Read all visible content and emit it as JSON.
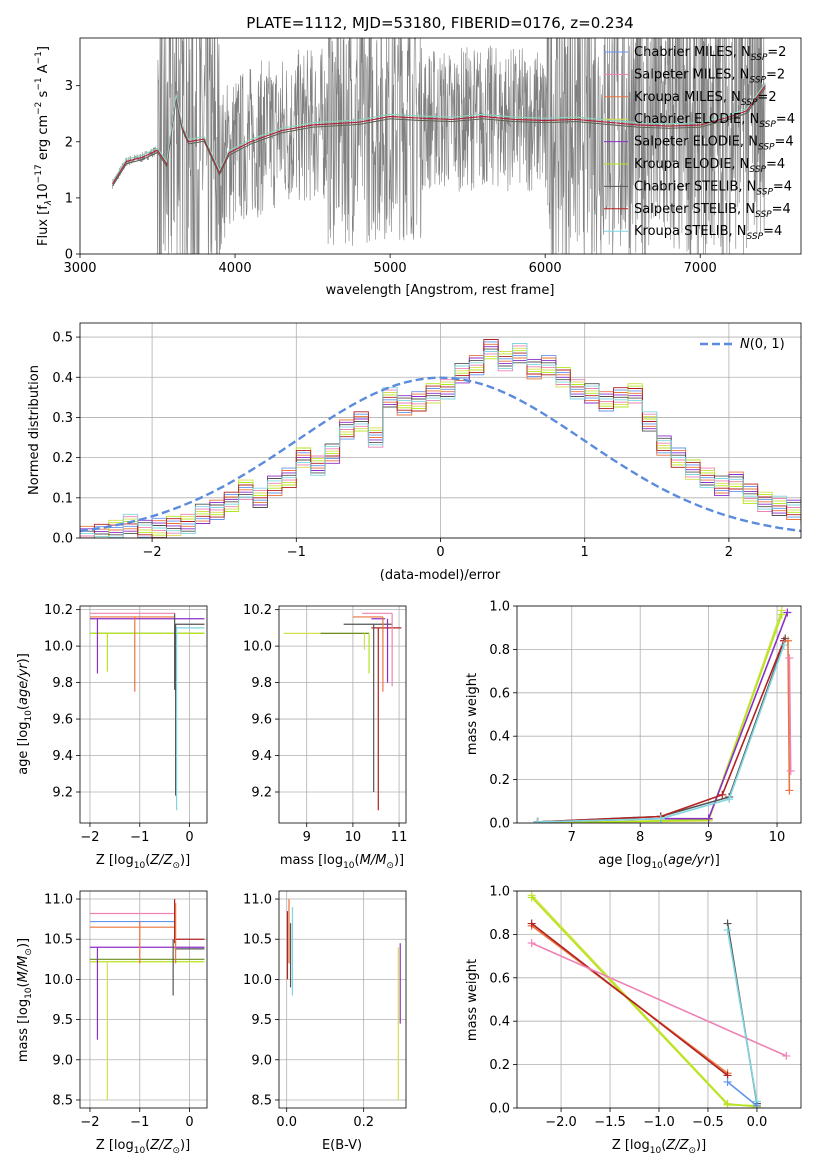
{
  "title": "PLATE=1112, MJD=53180, FIBERID=0176, z=0.234",
  "colors": {
    "chabrier_miles": "#6495ed",
    "salpeter_miles": "#ee82b4",
    "kroupa_miles": "#e9743e",
    "chabrier_elodie": "#d4df4f",
    "salpeter_elodie": "#8b2fc9",
    "kroupa_elodie": "#b5e61d",
    "chabrier_stelib": "#555555",
    "salpeter_stelib": "#b22222",
    "kroupa_stelib": "#7fd6e0",
    "data": "#808080",
    "normal": "#5b8bdc",
    "grid": "#b0b0b0"
  },
  "chart_data": [
    {
      "id": "spectrum",
      "type": "line",
      "xlabel": "wavelength [Angstrom, rest frame]",
      "ylabel_parts": [
        "Flux [f",
        "λ",
        "10",
        "−17",
        " erg cm",
        "−2",
        " s",
        "−1",
        " A",
        "−1",
        "]"
      ],
      "xlim": [
        3000,
        7650
      ],
      "ylim": [
        0,
        3.85
      ],
      "xticks": [
        3000,
        4000,
        5000,
        6000,
        7000
      ],
      "yticks": [
        0,
        1,
        2,
        3
      ],
      "grid": false,
      "legend_position": "top-right",
      "legend": [
        {
          "name": "Chabrier MILES, N",
          "sub": "SSP",
          "eq": "=2",
          "color": "#6495ed"
        },
        {
          "name": "Salpeter MILES, N",
          "sub": "SSP",
          "eq": "=2",
          "color": "#ee82b4"
        },
        {
          "name": "Kroupa MILES, N",
          "sub": "SSP",
          "eq": "=2",
          "color": "#e9743e"
        },
        {
          "name": "Chabrier ELODIE, N",
          "sub": "SSP",
          "eq": "=4",
          "color": "#d4df4f"
        },
        {
          "name": "Salpeter ELODIE, N",
          "sub": "SSP",
          "eq": "=4",
          "color": "#8b2fc9"
        },
        {
          "name": "Kroupa ELODIE, N",
          "sub": "SSP",
          "eq": "=4",
          "color": "#b5e61d"
        },
        {
          "name": "Chabrier STELIB, N",
          "sub": "SSP",
          "eq": "=4",
          "color": "#555555"
        },
        {
          "name": "Salpeter STELIB, N",
          "sub": "SSP",
          "eq": "=4",
          "color": "#b22222"
        },
        {
          "name": "Kroupa STELIB, N",
          "sub": "SSP",
          "eq": "=4",
          "color": "#7fd6e0"
        }
      ],
      "data_series": {
        "x_range": [
          3210,
          7420
        ],
        "noise_start": 3500
      },
      "model_continuum": [
        [
          3210,
          1.25
        ],
        [
          3300,
          1.65
        ],
        [
          3400,
          1.72
        ],
        [
          3500,
          1.85
        ],
        [
          3560,
          1.6
        ],
        [
          3620,
          2.8
        ],
        [
          3660,
          2.25
        ],
        [
          3700,
          2.0
        ],
        [
          3800,
          2.05
        ],
        [
          3900,
          1.45
        ],
        [
          3960,
          1.8
        ],
        [
          4100,
          2.0
        ],
        [
          4300,
          2.2
        ],
        [
          4500,
          2.3
        ],
        [
          4800,
          2.35
        ],
        [
          5000,
          2.45
        ],
        [
          5200,
          2.42
        ],
        [
          5400,
          2.4
        ],
        [
          5600,
          2.45
        ],
        [
          5800,
          2.4
        ],
        [
          6000,
          2.38
        ],
        [
          6200,
          2.4
        ],
        [
          6400,
          2.35
        ],
        [
          6600,
          2.3
        ],
        [
          6800,
          2.28
        ],
        [
          7000,
          2.3
        ],
        [
          7200,
          2.45
        ],
        [
          7300,
          2.55
        ],
        [
          7420,
          3.0
        ]
      ]
    },
    {
      "id": "residuals",
      "type": "bar",
      "xlabel": "(data-model)/error",
      "ylabel": "Normed distribution",
      "xlim": [
        -2.5,
        2.5
      ],
      "ylim": [
        0,
        0.535
      ],
      "xticks": [
        -2,
        -1,
        0,
        1,
        2
      ],
      "yticks": [
        0.0,
        0.1,
        0.2,
        0.3,
        0.4,
        0.5
      ],
      "grid": true,
      "legend_position": "top-right",
      "legend_label": "N(0,1)",
      "bin_width": 0.1,
      "bin_start": -2.5,
      "histogram": [
        0.005,
        0.01,
        0.02,
        0.035,
        0.02,
        0.025,
        0.03,
        0.035,
        0.06,
        0.07,
        0.09,
        0.12,
        0.1,
        0.13,
        0.15,
        0.2,
        0.18,
        0.21,
        0.27,
        0.29,
        0.25,
        0.35,
        0.33,
        0.34,
        0.36,
        0.37,
        0.41,
        0.43,
        0.47,
        0.44,
        0.46,
        0.42,
        0.43,
        0.4,
        0.37,
        0.36,
        0.34,
        0.35,
        0.36,
        0.29,
        0.23,
        0.2,
        0.17,
        0.15,
        0.13,
        0.14,
        0.11,
        0.09,
        0.08,
        0.07,
        0.06,
        0.055,
        0.05,
        0.04,
        0.04,
        0.035,
        0.03,
        0.03,
        0.025,
        0.02
      ]
    },
    {
      "id": "age_vs_Z",
      "type": "line",
      "xlabel": "Z [log10(Z/Z⊙)]",
      "ylabel": "age  [log10(age/yr)]",
      "xlim": [
        -2.2,
        0.35
      ],
      "ylim": [
        9.03,
        10.22
      ],
      "xticks": [
        -2,
        -1,
        0
      ],
      "yticks": [
        9.2,
        9.4,
        9.6,
        9.8,
        10.0,
        10.2
      ],
      "grid": true,
      "hlines": [
        {
          "y": 10.18,
          "x0": -2.0,
          "x1": -0.3,
          "color": "#ee82b4"
        },
        {
          "y": 10.16,
          "x0": -2.0,
          "x1": -0.3,
          "color": "#e9743e"
        },
        {
          "y": 10.15,
          "x0": -2.0,
          "x1": 0.3,
          "color": "#8b2fc9"
        },
        {
          "y": 10.12,
          "x0": -0.3,
          "x1": 0.3,
          "color": "#555555"
        },
        {
          "y": 10.1,
          "x0": -0.3,
          "x1": 0.3,
          "color": "#7fd6e0"
        },
        {
          "y": 10.07,
          "x0": -2.0,
          "x1": 0.3,
          "color": "#6b8e23"
        },
        {
          "y": 10.07,
          "x0": -2.0,
          "x1": 0.3,
          "color": "#b5e61d"
        }
      ],
      "vlines": [
        {
          "x": -1.85,
          "y0": 9.85,
          "y1": 10.15,
          "color": "#8b2fc9"
        },
        {
          "x": -1.1,
          "y0": 9.75,
          "y1": 10.16,
          "color": "#e9743e"
        },
        {
          "x": -1.65,
          "y0": 9.86,
          "y1": 10.07,
          "color": "#b5e61d"
        },
        {
          "x": -0.3,
          "y0": 9.76,
          "y1": 10.18,
          "color": "#555555"
        },
        {
          "x": -0.28,
          "y0": 9.18,
          "y1": 10.12,
          "color": "#555555"
        },
        {
          "x": -0.26,
          "y0": 9.1,
          "y1": 10.1,
          "color": "#7fd6e0"
        }
      ]
    },
    {
      "id": "age_vs_mass",
      "type": "line",
      "xlabel": "mass [log10(M/M⊙)]",
      "ylabel": "",
      "xlim": [
        8.4,
        11.15
      ],
      "ylim": [
        9.03,
        10.22
      ],
      "xticks": [
        9,
        10,
        11
      ],
      "yticks": [
        9.2,
        9.4,
        9.6,
        9.8,
        10.0,
        10.2
      ],
      "grid": true,
      "hlines": [
        {
          "y": 10.07,
          "x0": 8.5,
          "x1": 10.35,
          "color": "#d4df4f"
        },
        {
          "y": 10.07,
          "x0": 9.3,
          "x1": 10.35,
          "color": "#6b8e23"
        },
        {
          "y": 10.12,
          "x0": 9.8,
          "x1": 10.85,
          "color": "#555555"
        },
        {
          "y": 10.1,
          "x0": 10.4,
          "x1": 11.05,
          "color": "#b22222"
        },
        {
          "y": 10.16,
          "x0": 10.0,
          "x1": 10.65,
          "color": "#e9743e"
        },
        {
          "y": 10.18,
          "x0": 10.2,
          "x1": 10.85,
          "color": "#ee82b4"
        },
        {
          "y": 10.15,
          "x0": 10.4,
          "x1": 10.7,
          "color": "#8b2fc9"
        }
      ],
      "vlines": [
        {
          "x": 10.25,
          "y0": 9.98,
          "y1": 10.07,
          "color": "#d4df4f"
        },
        {
          "x": 10.35,
          "y0": 9.85,
          "y1": 10.07,
          "color": "#b5e61d"
        },
        {
          "x": 10.45,
          "y0": 9.2,
          "y1": 10.12,
          "color": "#555555"
        },
        {
          "x": 10.55,
          "y0": 9.1,
          "y1": 10.1,
          "color": "#b22222"
        },
        {
          "x": 10.65,
          "y0": 9.75,
          "y1": 10.16,
          "color": "#e9743e"
        },
        {
          "x": 10.75,
          "y0": 9.8,
          "y1": 10.15,
          "color": "#8b2fc9"
        },
        {
          "x": 10.85,
          "y0": 9.78,
          "y1": 10.18,
          "color": "#ee82b4"
        }
      ]
    },
    {
      "id": "weight_vs_age",
      "type": "line",
      "xlabel": "age  [log10(age/yr)]",
      "ylabel": "mass weight",
      "xlim": [
        6.2,
        10.35
      ],
      "ylim": [
        0,
        1.0
      ],
      "xticks": [
        7,
        8,
        9,
        10
      ],
      "yticks": [
        0.0,
        0.2,
        0.4,
        0.6,
        0.8,
        1.0
      ],
      "grid": true,
      "series": [
        {
          "color": "#d4df4f",
          "points": [
            [
              6.5,
              0.005
            ],
            [
              7.5,
              0.005
            ],
            [
              9.0,
              0.01
            ],
            [
              10.07,
              0.98
            ]
          ]
        },
        {
          "color": "#b5e61d",
          "points": [
            [
              6.5,
              0.005
            ],
            [
              7.5,
              0.005
            ],
            [
              9.0,
              0.015
            ],
            [
              10.07,
              0.96
            ]
          ]
        },
        {
          "color": "#8b2fc9",
          "points": [
            [
              6.5,
              0.005
            ],
            [
              8.3,
              0.02
            ],
            [
              9.0,
              0.02
            ],
            [
              10.15,
              0.97
            ]
          ]
        },
        {
          "color": "#555555",
          "points": [
            [
              6.5,
              0.005
            ],
            [
              8.3,
              0.03
            ],
            [
              9.3,
              0.12
            ],
            [
              10.12,
              0.85
            ]
          ]
        },
        {
          "color": "#b22222",
          "points": [
            [
              6.5,
              0.005
            ],
            [
              8.3,
              0.03
            ],
            [
              9.2,
              0.13
            ],
            [
              10.1,
              0.84
            ]
          ]
        },
        {
          "color": "#7fd6e0",
          "points": [
            [
              6.5,
              0.005
            ],
            [
              8.3,
              0.02
            ],
            [
              9.3,
              0.11
            ],
            [
              10.1,
              0.82
            ]
          ]
        },
        {
          "color": "#e9743e",
          "points": [
            [
              10.16,
              0.84
            ],
            [
              10.18,
              0.15
            ]
          ]
        },
        {
          "color": "#ee82b4",
          "points": [
            [
              10.18,
              0.76
            ],
            [
              10.2,
              0.24
            ]
          ]
        }
      ]
    },
    {
      "id": "mass_vs_Z",
      "type": "line",
      "xlabel": "Z [log10(Z/Z⊙)]",
      "ylabel": "mass [log10(M/M⊙)]",
      "xlim": [
        -2.2,
        0.35
      ],
      "ylim": [
        8.4,
        11.1
      ],
      "xticks": [
        -2,
        -1,
        0
      ],
      "yticks": [
        8.5,
        9.0,
        9.5,
        10.0,
        10.5,
        11.0
      ],
      "grid": true,
      "hlines": [
        {
          "y": 10.82,
          "x0": -2.0,
          "x1": -0.3,
          "color": "#ee82b4"
        },
        {
          "y": 10.65,
          "x0": -2.0,
          "x1": -0.3,
          "color": "#e9743e"
        },
        {
          "y": 10.72,
          "x0": -2.0,
          "x1": -0.3,
          "color": "#6495ed"
        },
        {
          "y": 10.5,
          "x0": -0.3,
          "x1": 0.3,
          "color": "#b22222"
        },
        {
          "y": 10.4,
          "x0": -2.0,
          "x1": 0.3,
          "color": "#8b2fc9"
        },
        {
          "y": 10.38,
          "x0": -0.3,
          "x1": 0.3,
          "color": "#555555"
        },
        {
          "y": 10.25,
          "x0": -2.0,
          "x1": 0.3,
          "color": "#6b8e23"
        },
        {
          "y": 10.22,
          "x0": -2.0,
          "x1": 0.3,
          "color": "#b5e61d"
        }
      ],
      "vlines": [
        {
          "x": -1.85,
          "y0": 9.25,
          "y1": 10.4,
          "color": "#8b2fc9"
        },
        {
          "x": -1.65,
          "y0": 8.5,
          "y1": 10.22,
          "color": "#d4df4f"
        },
        {
          "x": -1.0,
          "y0": 10.2,
          "y1": 10.72,
          "color": "#e9743e"
        },
        {
          "x": -0.33,
          "y0": 9.8,
          "y1": 10.5,
          "color": "#555555"
        },
        {
          "x": -0.3,
          "y0": 10.45,
          "y1": 11.0,
          "color": "#b22222"
        },
        {
          "x": -0.28,
          "y0": 10.2,
          "y1": 10.95,
          "color": "#e9743e"
        }
      ]
    },
    {
      "id": "mass_vs_EBV",
      "type": "line",
      "xlabel": "E(B-V)",
      "ylabel": "",
      "xlim": [
        -0.02,
        0.31
      ],
      "ylim": [
        8.4,
        11.1
      ],
      "xticks": [
        0.0,
        0.2
      ],
      "yticks": [
        8.5,
        9.0,
        9.5,
        10.0,
        10.5,
        11.0
      ],
      "grid": true,
      "vlines": [
        {
          "x": 0.002,
          "y0": 10.0,
          "y1": 10.85,
          "color": "#b22222"
        },
        {
          "x": 0.006,
          "y0": 10.2,
          "y1": 11.0,
          "color": "#e9743e"
        },
        {
          "x": 0.01,
          "y0": 9.9,
          "y1": 10.7,
          "color": "#555555"
        },
        {
          "x": 0.015,
          "y0": 9.8,
          "y1": 10.9,
          "color": "#7fd6e0"
        },
        {
          "x": 0.29,
          "y0": 8.5,
          "y1": 10.4,
          "color": "#d4df4f"
        },
        {
          "x": 0.295,
          "y0": 9.45,
          "y1": 10.45,
          "color": "#8b2fc9"
        }
      ]
    },
    {
      "id": "weight_vs_Z",
      "type": "line",
      "xlabel": "Z [log10(Z/Z⊙)]",
      "ylabel": "mass weight",
      "xlim": [
        -2.45,
        0.45
      ],
      "ylim": [
        0,
        1.0
      ],
      "xticks": [
        -2.0,
        -1.5,
        -1.0,
        -0.5,
        0.0
      ],
      "yticks": [
        0.0,
        0.2,
        0.4,
        0.6,
        0.8,
        1.0
      ],
      "grid": true,
      "series": [
        {
          "color": "#d4df4f",
          "points": [
            [
              -2.3,
              0.98
            ],
            [
              -0.3,
              0.02
            ],
            [
              0.0,
              0.005
            ]
          ]
        },
        {
          "color": "#b5e61d",
          "points": [
            [
              -2.3,
              0.97
            ],
            [
              -0.3,
              0.015
            ],
            [
              0.0,
              0.01
            ]
          ]
        },
        {
          "color": "#e9743e",
          "points": [
            [
              -2.3,
              0.84
            ],
            [
              -0.3,
              0.16
            ]
          ]
        },
        {
          "color": "#b22222",
          "points": [
            [
              -2.3,
              0.85
            ],
            [
              -0.3,
              0.15
            ]
          ]
        },
        {
          "color": "#ee82b4",
          "points": [
            [
              -2.3,
              0.76
            ],
            [
              0.3,
              0.24
            ]
          ]
        },
        {
          "color": "#555555",
          "points": [
            [
              -0.3,
              0.85
            ],
            [
              0.0,
              0.02
            ]
          ]
        },
        {
          "color": "#7fd6e0",
          "points": [
            [
              -0.3,
              0.82
            ],
            [
              0.0,
              0.03
            ]
          ]
        },
        {
          "color": "#6495ed",
          "points": [
            [
              -0.3,
              0.12
            ],
            [
              0.0,
              0.01
            ]
          ]
        }
      ]
    }
  ]
}
